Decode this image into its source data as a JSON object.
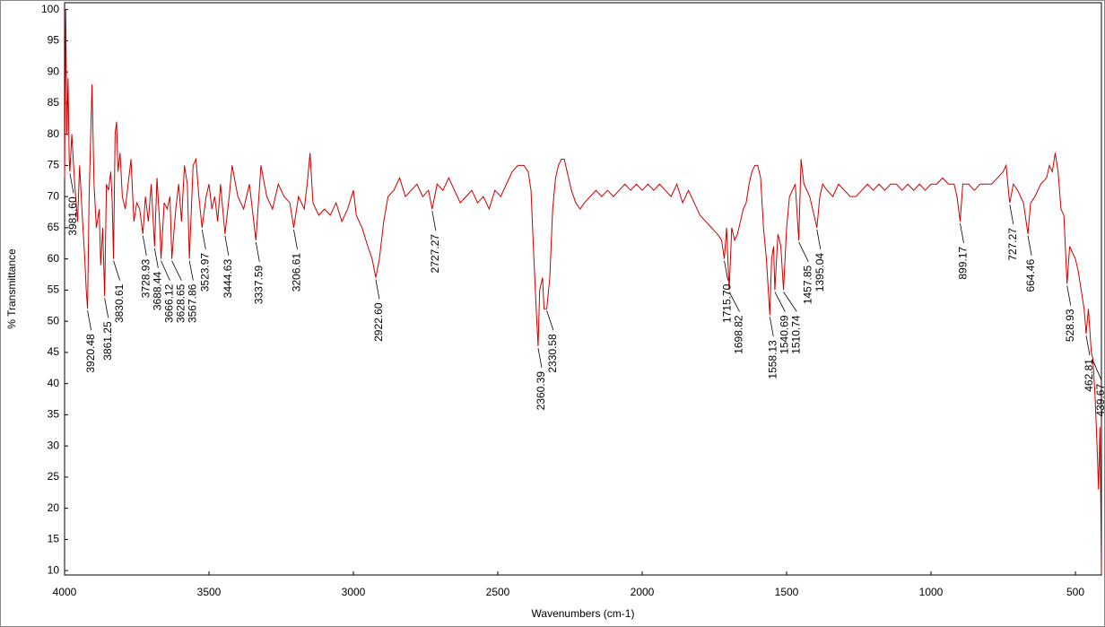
{
  "chart_data": {
    "type": "line",
    "x_label": "Wavenumbers (cm-1)",
    "y_label": "% Transmittance",
    "color": "#cc0000",
    "xlim": [
      4000,
      410
    ],
    "ylim": [
      9.3,
      101.1
    ],
    "xticks": [
      4000,
      3500,
      3000,
      2500,
      2000,
      1500,
      1000,
      500
    ],
    "yticks": [
      10,
      15,
      20,
      25,
      30,
      35,
      40,
      45,
      50,
      55,
      60,
      65,
      70,
      75,
      80,
      85,
      90,
      95,
      100
    ],
    "x": [
      4000,
      3996,
      3992,
      3988,
      3984,
      3981.6,
      3975,
      3965,
      3955,
      3948,
      3940,
      3930,
      3925,
      3920.48,
      3915,
      3905,
      3898,
      3890,
      3880,
      3875,
      3868,
      3861.25,
      3855,
      3848,
      3840,
      3835,
      3830.61,
      3825,
      3820,
      3815,
      3808,
      3800,
      3790,
      3780,
      3770,
      3760,
      3750,
      3740,
      3728.93,
      3720,
      3710,
      3700,
      3688.44,
      3680,
      3670,
      3666.12,
      3655,
      3645,
      3635,
      3628.65,
      3615,
      3605,
      3595,
      3585,
      3575,
      3567.86,
      3555,
      3545,
      3535,
      3523.97,
      3510,
      3500,
      3490,
      3480,
      3470,
      3460,
      3444.63,
      3430,
      3420,
      3400,
      3380,
      3360,
      3337.59,
      3320,
      3300,
      3280,
      3260,
      3240,
      3220,
      3206.61,
      3190,
      3170,
      3160,
      3150,
      3140,
      3120,
      3100,
      3080,
      3060,
      3040,
      3020,
      3000,
      2990,
      2970,
      2950,
      2935,
      2922.6,
      2910,
      2895,
      2880,
      2860,
      2840,
      2820,
      2800,
      2780,
      2760,
      2740,
      2727.27,
      2710,
      2690,
      2670,
      2650,
      2630,
      2610,
      2590,
      2570,
      2550,
      2530,
      2510,
      2490,
      2470,
      2450,
      2430,
      2410,
      2395,
      2385,
      2375,
      2365,
      2360.39,
      2355,
      2345,
      2340,
      2330.58,
      2320,
      2310,
      2300,
      2290,
      2280,
      2270,
      2260,
      2245,
      2230,
      2215,
      2200,
      2180,
      2160,
      2140,
      2120,
      2100,
      2080,
      2060,
      2040,
      2020,
      2000,
      1980,
      1960,
      1940,
      1920,
      1900,
      1880,
      1860,
      1840,
      1820,
      1800,
      1780,
      1760,
      1740,
      1725,
      1715.7,
      1708,
      1698.82,
      1690,
      1680,
      1670,
      1660,
      1650,
      1640,
      1630,
      1620,
      1610,
      1600,
      1590,
      1580,
      1570,
      1558.13,
      1552,
      1545,
      1540.69,
      1530,
      1520,
      1510.74,
      1500,
      1490,
      1480,
      1470,
      1457.85,
      1450,
      1440,
      1430,
      1420,
      1410,
      1395.04,
      1385,
      1375,
      1360,
      1340,
      1320,
      1300,
      1280,
      1260,
      1240,
      1220,
      1200,
      1180,
      1160,
      1140,
      1120,
      1100,
      1080,
      1060,
      1040,
      1020,
      1000,
      980,
      960,
      940,
      920,
      910,
      899.17,
      890,
      870,
      850,
      830,
      810,
      790,
      770,
      750,
      740,
      730,
      727.27,
      715,
      700,
      690,
      680,
      664.46,
      655,
      640,
      620,
      600,
      590,
      580,
      570,
      560,
      550,
      540,
      535,
      528.93,
      520,
      510,
      500,
      490,
      480,
      470,
      462.81,
      455,
      445,
      439.67,
      432,
      425,
      420,
      415,
      412,
      410
    ],
    "values": [
      73,
      100,
      80,
      89,
      76,
      74,
      80,
      72,
      66,
      75,
      68,
      60,
      55,
      52,
      70,
      88,
      72,
      65,
      68,
      59,
      65,
      54,
      72,
      71,
      74,
      69,
      60,
      80,
      82,
      74,
      77,
      70,
      68,
      72,
      76,
      66,
      69,
      68,
      64,
      70,
      66,
      72,
      62,
      73,
      65,
      60,
      69,
      68,
      70,
      60,
      68,
      72,
      66,
      75,
      72,
      60,
      75,
      76,
      70,
      65,
      70,
      72,
      68,
      70,
      66,
      72,
      64,
      70,
      75,
      70,
      68,
      72,
      63,
      75,
      70,
      68,
      72,
      70,
      69,
      65,
      70,
      68,
      72,
      77,
      69,
      67,
      68,
      67,
      69,
      66,
      68,
      71,
      67,
      65,
      62,
      60,
      57,
      60,
      66,
      70,
      71,
      73,
      70,
      71,
      72,
      70,
      71,
      68,
      72,
      71,
      73,
      71,
      69,
      70,
      71,
      69,
      70,
      68,
      71,
      70,
      72,
      74,
      75,
      75,
      74,
      71,
      60,
      50,
      46,
      55,
      57,
      52,
      52,
      57,
      68,
      73,
      75,
      76,
      76,
      74,
      71,
      69,
      68,
      69,
      70,
      71,
      70,
      71,
      70,
      71,
      72,
      71,
      72,
      71,
      72,
      71,
      72,
      71,
      70,
      72,
      69,
      71,
      69,
      67,
      66,
      65,
      64,
      63,
      60,
      65,
      55,
      65,
      63,
      64,
      66,
      68,
      69,
      72,
      74,
      75,
      75,
      73,
      65,
      60,
      51,
      60,
      62,
      55,
      64,
      62,
      55,
      65,
      70,
      71,
      72,
      63,
      76,
      72,
      71,
      70,
      68,
      65,
      70,
      72,
      71,
      70,
      72,
      71,
      70,
      70,
      71,
      72,
      71,
      72,
      71,
      72,
      72,
      71,
      72,
      71,
      72,
      71,
      72,
      72,
      73,
      72,
      72,
      70,
      66,
      72,
      72,
      71,
      72,
      72,
      72,
      73,
      74,
      75,
      70,
      69,
      72,
      71,
      70,
      69,
      64,
      69,
      70,
      72,
      73,
      75,
      74,
      77,
      74,
      68,
      67,
      62,
      56,
      62,
      61,
      60,
      58,
      55,
      52,
      48,
      52,
      45,
      44,
      38,
      30,
      23,
      33,
      20,
      9.5
    ],
    "peak_labels": [
      {
        "value": 3981.6,
        "label": "3981.60"
      },
      {
        "value": 3920.48,
        "label": "3920.48"
      },
      {
        "value": 3861.25,
        "label": "3861.25"
      },
      {
        "value": 3830.61,
        "label": "3830.61"
      },
      {
        "value": 3728.93,
        "label": "3728.93"
      },
      {
        "value": 3688.44,
        "label": "3688.44"
      },
      {
        "value": 3666.12,
        "label": "3666.12"
      },
      {
        "value": 3628.65,
        "label": "3628.65"
      },
      {
        "value": 3567.86,
        "label": "3567.86"
      },
      {
        "value": 3523.97,
        "label": "3523.97"
      },
      {
        "value": 3444.63,
        "label": "3444.63"
      },
      {
        "value": 3337.59,
        "label": "3337.59"
      },
      {
        "value": 3206.61,
        "label": "3206.61"
      },
      {
        "value": 2922.6,
        "label": "2922.60"
      },
      {
        "value": 2727.27,
        "label": "2727.27"
      },
      {
        "value": 2360.39,
        "label": "2360.39"
      },
      {
        "value": 2330.58,
        "label": "2330.58"
      },
      {
        "value": 1715.7,
        "label": "1715.70"
      },
      {
        "value": 1698.82,
        "label": "1698.82"
      },
      {
        "value": 1558.13,
        "label": "1558.13"
      },
      {
        "value": 1540.69,
        "label": "1540.69"
      },
      {
        "value": 1510.74,
        "label": "1510.74"
      },
      {
        "value": 1457.85,
        "label": "1457.85"
      },
      {
        "value": 1395.04,
        "label": "1395.04"
      },
      {
        "value": 899.17,
        "label": "899.17"
      },
      {
        "value": 727.27,
        "label": "727.27"
      },
      {
        "value": 664.46,
        "label": "664.46"
      },
      {
        "value": 528.93,
        "label": "528.93"
      },
      {
        "value": 462.81,
        "label": "462.81"
      },
      {
        "value": 439.67,
        "label": "439.67"
      }
    ]
  }
}
